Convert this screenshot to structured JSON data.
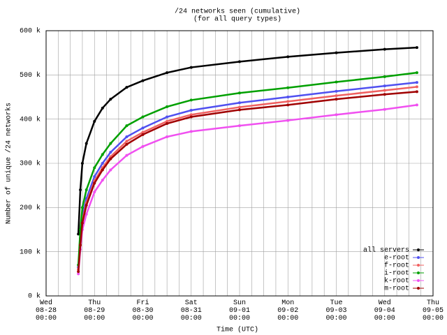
{
  "chart_data": {
    "type": "line",
    "title": "/24 networks seen (cumulative)",
    "subtitle": "(for all query types)",
    "x_label": "Time (UTC)",
    "y_label": "Number of unique /24 networks",
    "x": [
      16,
      17,
      18,
      20,
      24,
      28,
      32,
      40,
      48,
      60,
      72,
      96,
      120,
      144,
      168,
      184
    ],
    "xlim": [
      0,
      192
    ],
    "xticks": [
      {
        "value": 0,
        "label": "Wed\n08-28\n00:00"
      },
      {
        "value": 24,
        "label": "Thu\n08-29\n00:00"
      },
      {
        "value": 48,
        "label": "Fri\n08-30\n00:00"
      },
      {
        "value": 72,
        "label": "Sat\n08-31\n00:00"
      },
      {
        "value": 96,
        "label": "Sun\n09-01\n00:00"
      },
      {
        "value": 120,
        "label": "Mon\n09-02\n00:00"
      },
      {
        "value": 144,
        "label": "Tue\n09-03\n00:00"
      },
      {
        "value": 168,
        "label": "Wed\n09-04\n00:00"
      },
      {
        "value": 192,
        "label": "Thu\n09-05\n00:00"
      }
    ],
    "ylim": [
      0,
      600000
    ],
    "yticks": [
      {
        "value": 0,
        "label": "0 k"
      },
      {
        "value": 100000,
        "label": "100 k"
      },
      {
        "value": 200000,
        "label": "200 k"
      },
      {
        "value": 300000,
        "label": "300 k"
      },
      {
        "value": 400000,
        "label": "400 k"
      },
      {
        "value": 500000,
        "label": "500 k"
      },
      {
        "value": 600000,
        "label": "600 k"
      }
    ],
    "grid": true,
    "legend": "bottom-right",
    "series": [
      {
        "name": "all servers",
        "color": "#000000",
        "values": [
          140000,
          240000,
          300000,
          345000,
          395000,
          425000,
          445000,
          472000,
          487000,
          505000,
          517000,
          530000,
          541000,
          550000,
          558000,
          562000
        ]
      },
      {
        "name": "e-root",
        "color": "#5050f0",
        "values": [
          65000,
          130000,
          180000,
          220000,
          270000,
          300000,
          325000,
          360000,
          380000,
          405000,
          420000,
          437000,
          450000,
          463000,
          475000,
          483000
        ]
      },
      {
        "name": "f-root",
        "color": "#f06060",
        "values": [
          60000,
          120000,
          170000,
          210000,
          260000,
          290000,
          315000,
          350000,
          370000,
          395000,
          410000,
          427000,
          440000,
          453000,
          465000,
          473000
        ]
      },
      {
        "name": "i-root",
        "color": "#00a000",
        "values": [
          70000,
          150000,
          200000,
          240000,
          290000,
          320000,
          345000,
          385000,
          405000,
          428000,
          443000,
          459000,
          471000,
          484000,
          496000,
          505000
        ]
      },
      {
        "name": "k-root",
        "color": "#f050f0",
        "values": [
          50000,
          105000,
          150000,
          185000,
          235000,
          262000,
          285000,
          318000,
          338000,
          360000,
          372000,
          385000,
          397000,
          410000,
          422000,
          432000
        ]
      },
      {
        "name": "m-root",
        "color": "#a00000",
        "values": [
          55000,
          115000,
          165000,
          205000,
          255000,
          285000,
          310000,
          343000,
          365000,
          390000,
          405000,
          421000,
          432000,
          445000,
          456000,
          462000
        ]
      }
    ]
  }
}
